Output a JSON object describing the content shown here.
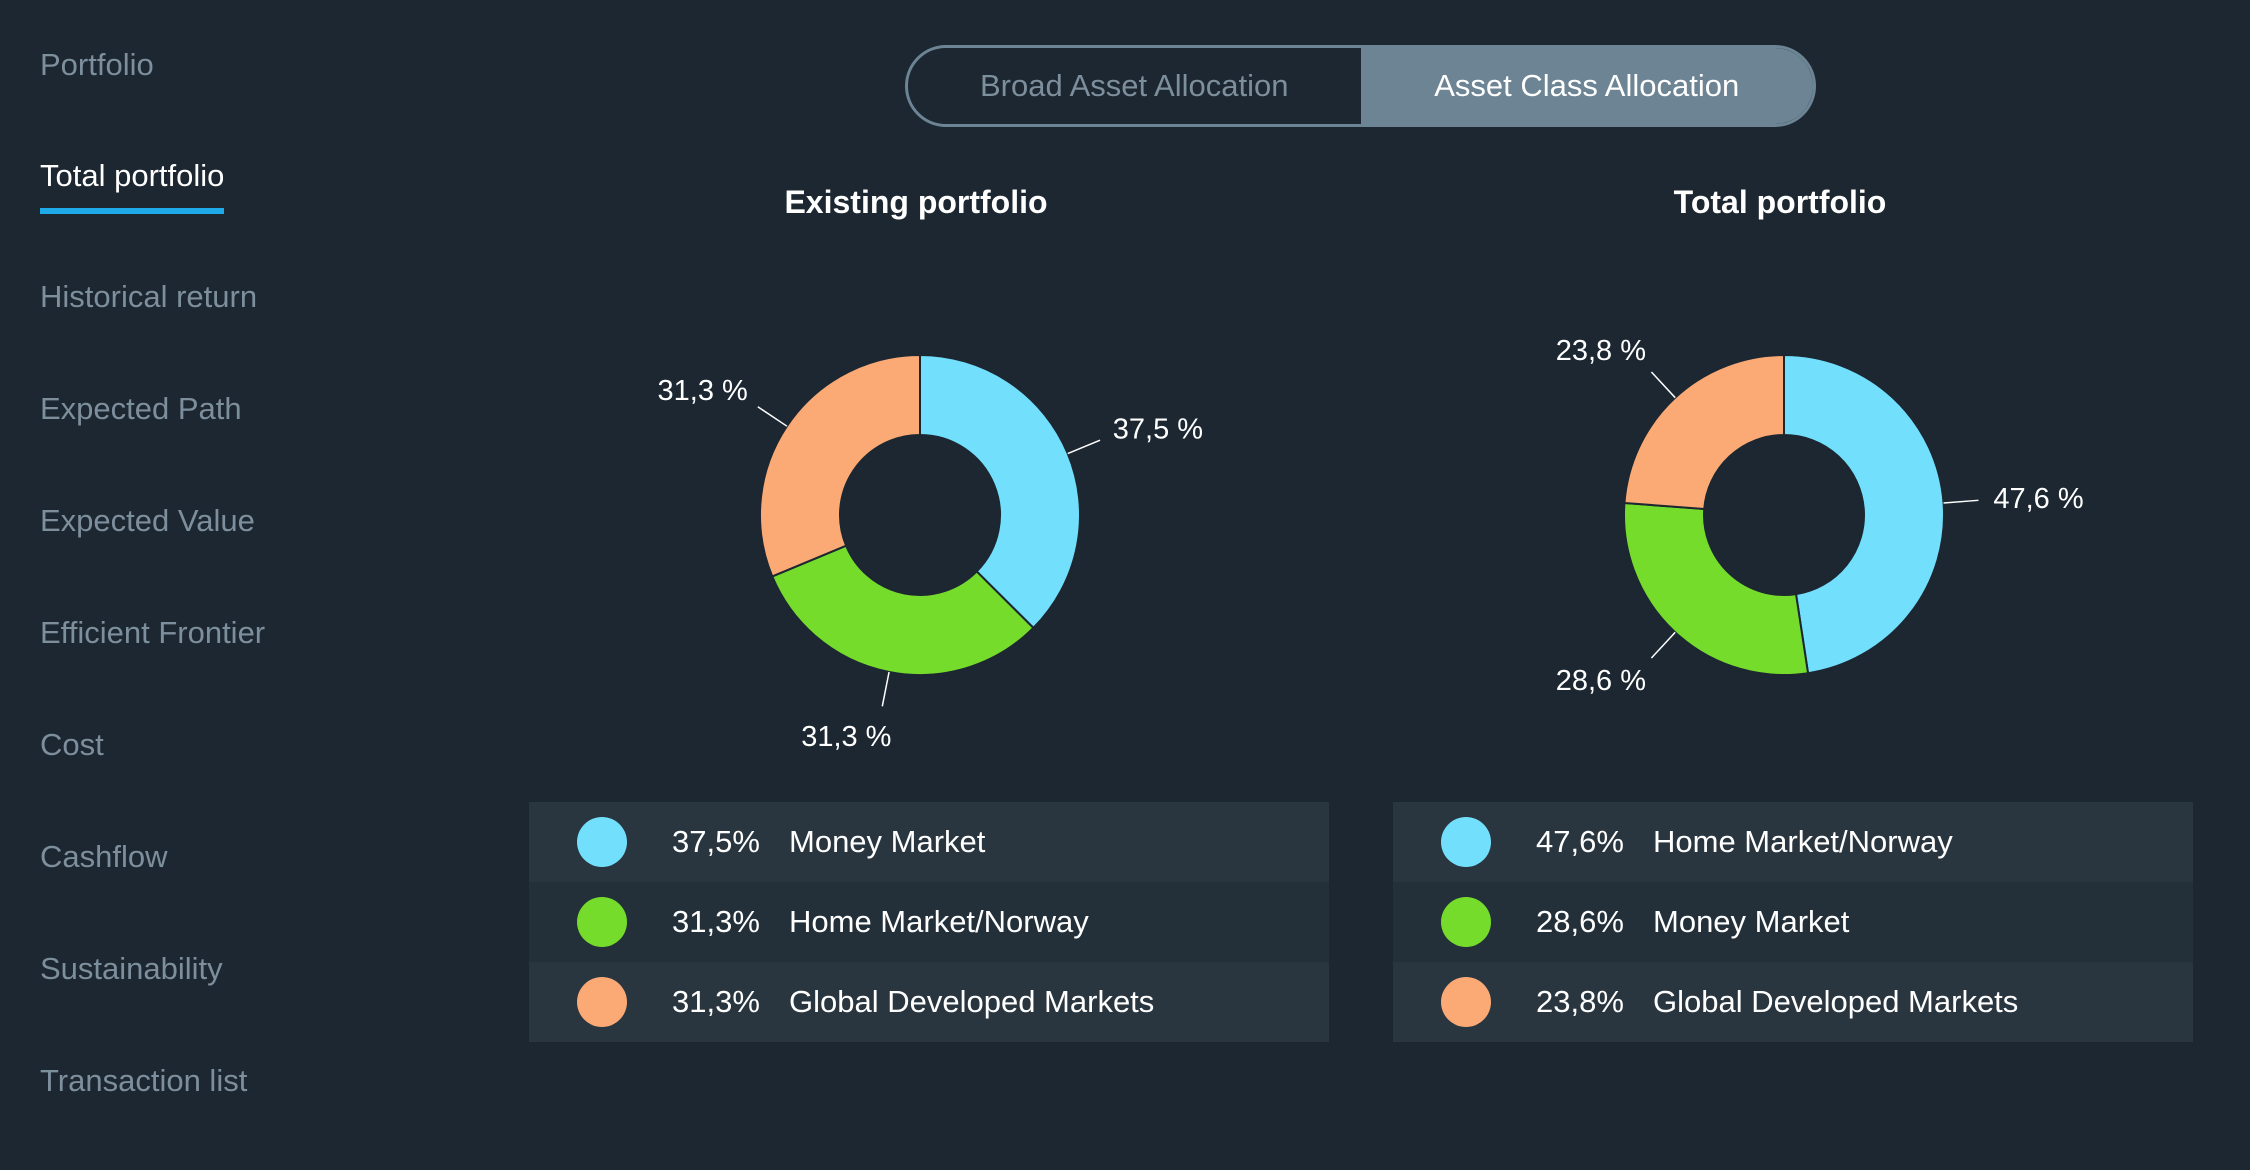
{
  "sidebar": {
    "items": [
      {
        "label": "Portfolio",
        "active": false
      },
      {
        "label": "Total portfolio",
        "active": true
      },
      {
        "label": "Historical return",
        "active": false
      },
      {
        "label": "Expected Path",
        "active": false
      },
      {
        "label": "Expected Value",
        "active": false
      },
      {
        "label": "Efficient Frontier",
        "active": false
      },
      {
        "label": "Cost",
        "active": false
      },
      {
        "label": "Cashflow",
        "active": false
      },
      {
        "label": "Sustainability",
        "active": false
      },
      {
        "label": "Transaction list",
        "active": false
      }
    ]
  },
  "toggle": {
    "options": [
      "Broad Asset Allocation",
      "Asset Class Allocation"
    ],
    "selected": "Asset Class Allocation"
  },
  "colors": {
    "money_market": "#72dffd",
    "home_market": "#76dc2c",
    "global_developed": "#fbaa75",
    "accent": "#1ea9e8"
  },
  "chart_data": [
    {
      "type": "pie",
      "title": "Existing portfolio",
      "slice_labels": [
        "37,5 %",
        "31,3 %",
        "31,3 %"
      ],
      "series": [
        {
          "name": "Money Market",
          "value": 37.5,
          "color": "#72dffd"
        },
        {
          "name": "Home Market/Norway",
          "value": 31.3,
          "color": "#76dc2c"
        },
        {
          "name": "Global Developed Markets",
          "value": 31.3,
          "color": "#fbaa75"
        }
      ],
      "legend": [
        {
          "pct": "37,5%",
          "name": "Money Market",
          "color": "#72dffd"
        },
        {
          "pct": "31,3%",
          "name": "Home Market/Norway",
          "color": "#76dc2c"
        },
        {
          "pct": "31,3%",
          "name": "Global Developed Markets",
          "color": "#fbaa75"
        }
      ]
    },
    {
      "type": "pie",
      "title": "Total portfolio",
      "slice_labels": [
        "47,6 %",
        "28,6 %",
        "23,8 %"
      ],
      "series": [
        {
          "name": "Home Market/Norway",
          "value": 47.6,
          "color": "#72dffd"
        },
        {
          "name": "Money Market",
          "value": 28.6,
          "color": "#76dc2c"
        },
        {
          "name": "Global Developed Markets",
          "value": 23.8,
          "color": "#fbaa75"
        }
      ],
      "legend": [
        {
          "pct": "47,6%",
          "name": "Home Market/Norway",
          "color": "#72dffd"
        },
        {
          "pct": "28,6%",
          "name": "Money Market",
          "color": "#76dc2c"
        },
        {
          "pct": "23,8%",
          "name": "Global Developed Markets",
          "color": "#fbaa75"
        }
      ]
    }
  ]
}
